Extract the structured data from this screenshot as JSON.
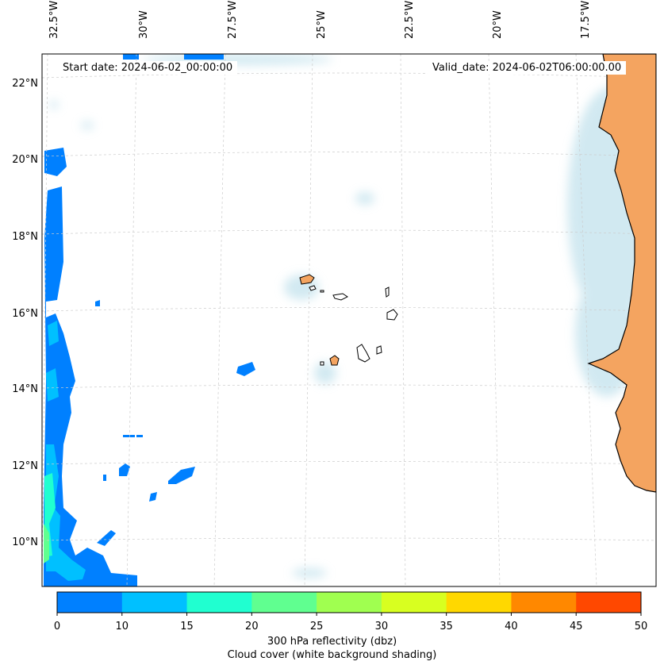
{
  "map": {
    "start_date_text": "Start date: 2024-06-02_00:00:00",
    "valid_date_text": "Valid_date: 2024-06-02T06:00:00.00",
    "longitude_labels": [
      "32.5°W",
      "30°W",
      "27.5°W",
      "25°W",
      "22.5°W",
      "20°W",
      "17.5°W"
    ],
    "latitude_labels": [
      "22°N",
      "20°N",
      "18°N",
      "16°N",
      "14°N",
      "12°N",
      "10°N"
    ],
    "colors": {
      "coastline": "#000000",
      "land": "#f4a460",
      "cloud": "#add8e6",
      "grid": "#cccccc"
    }
  },
  "colorbar": {
    "ticks": [
      "0",
      "10",
      "15",
      "20",
      "25",
      "30",
      "35",
      "40",
      "45",
      "50"
    ],
    "colors": [
      "#0080ff",
      "#00c0ff",
      "#20ffd0",
      "#60ff90",
      "#a0ff50",
      "#d8ff20",
      "#ffd800",
      "#ff8800",
      "#ff4800"
    ],
    "label_line1": "300 hPa reflectivity (dbz)",
    "label_line2": "Cloud cover (white background shading)"
  }
}
